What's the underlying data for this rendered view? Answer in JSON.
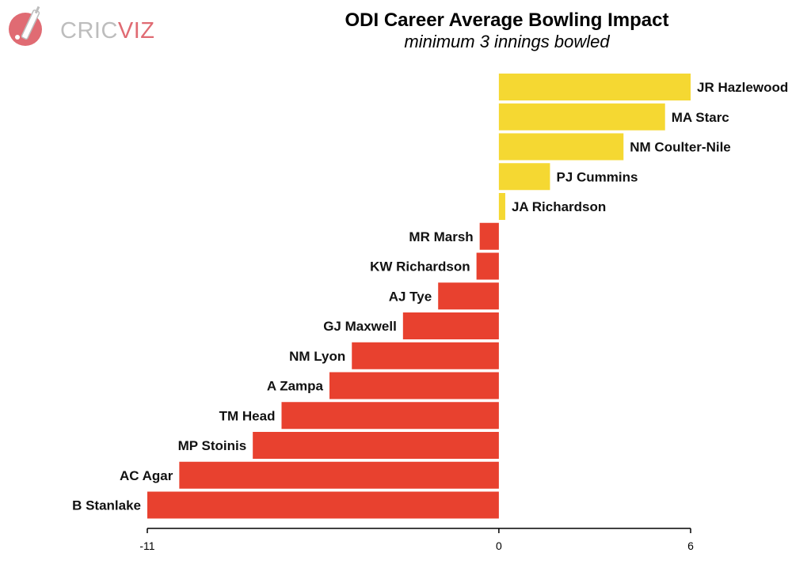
{
  "logo": {
    "text_part1": "CRIC",
    "text_part2": "VIZ",
    "icon": "cricket-bat-ball-icon"
  },
  "colors": {
    "positive": "#f5d832",
    "negative": "#e8412f",
    "logo_accent": "#e06b73",
    "logo_gray": "#bdbdbd"
  },
  "chart_data": {
    "type": "bar",
    "orientation": "horizontal",
    "title": "ODI Career Average Bowling Impact",
    "subtitle": "minimum 3 innings bowled",
    "xlabel": "",
    "ylabel": "",
    "xlim": [
      -11,
      6
    ],
    "x_ticks": [
      -11,
      0,
      6
    ],
    "x_tick_labels": [
      "-11",
      "0",
      "6"
    ],
    "grid": false,
    "legend": "none",
    "categories": [
      "JR Hazlewood",
      "MA Starc",
      "NM Coulter-Nile",
      "PJ Cummins",
      "JA Richardson",
      "MR Marsh",
      "KW Richardson",
      "AJ Tye",
      "GJ Maxwell",
      "NM Lyon",
      "A Zampa",
      "TM Head",
      "MP Stoinis",
      "AC Agar",
      "B Stanlake"
    ],
    "values": [
      6.0,
      5.2,
      3.9,
      1.6,
      0.2,
      -0.6,
      -0.7,
      -1.9,
      -3.0,
      -4.6,
      -5.3,
      -6.8,
      -7.7,
      -10.0,
      -11.0
    ]
  }
}
